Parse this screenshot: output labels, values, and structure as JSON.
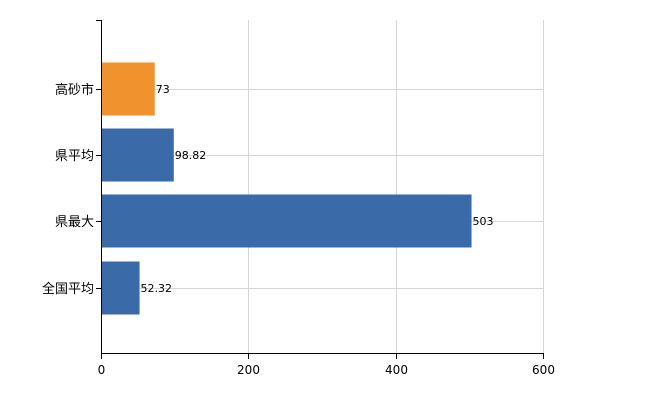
{
  "chart_data": {
    "type": "bar",
    "orientation": "horizontal",
    "categories": [
      "高砂市",
      "県平均",
      "県最大",
      "全国平均"
    ],
    "values": [
      73,
      98.82,
      503,
      52.32
    ],
    "value_labels": [
      "73",
      "98.82",
      "503",
      "52.32"
    ],
    "bar_colors": [
      "#f0932e",
      "#3a6aa8",
      "#3a6aa8",
      "#3a6aa8"
    ],
    "xlim": [
      0,
      600
    ],
    "x_ticks": [
      0,
      200,
      400,
      600
    ],
    "x_tick_labels": [
      "0",
      "200",
      "400",
      "600"
    ],
    "grid": true,
    "legend": "none",
    "title": "",
    "xlabel": "",
    "ylabel": ""
  }
}
